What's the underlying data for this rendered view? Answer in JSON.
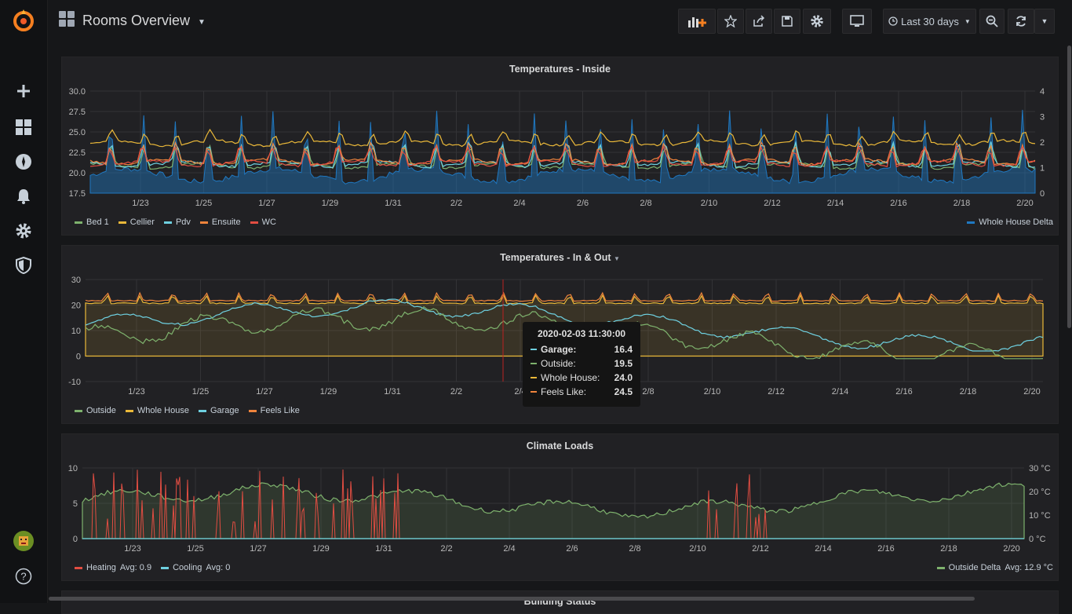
{
  "dashboard": {
    "title": "Rooms Overview"
  },
  "toolbar": {
    "time_range": "Last 30 days"
  },
  "xticks": [
    "1/23",
    "1/25",
    "1/27",
    "1/29",
    "1/31",
    "2/2",
    "2/4",
    "2/6",
    "2/8",
    "2/10",
    "2/12",
    "2/14",
    "2/16",
    "2/18",
    "2/20"
  ],
  "panels": [
    {
      "title": "Temperatures - Inside",
      "left_ticks": [
        "30.0",
        "27.5",
        "25.0",
        "22.5",
        "20.0",
        "17.5"
      ],
      "right_ticks": [
        "4",
        "3",
        "2",
        "1",
        "0"
      ],
      "legend": [
        {
          "label": "Bed 1",
          "color": "#7eb26d"
        },
        {
          "label": "Cellier",
          "color": "#eab839"
        },
        {
          "label": "Pdv",
          "color": "#6ed0e0"
        },
        {
          "label": "Ensuite",
          "color": "#ef843c"
        },
        {
          "label": "WC",
          "color": "#e24d42"
        }
      ],
      "legend_right": {
        "label": "Whole House Delta",
        "color": "#1f78c1"
      }
    },
    {
      "title": "Temperatures - In & Out",
      "left_ticks": [
        "30",
        "20",
        "10",
        "0",
        "-10"
      ],
      "legend": [
        {
          "label": "Outside",
          "color": "#7eb26d"
        },
        {
          "label": "Whole House",
          "color": "#eab839"
        },
        {
          "label": "Garage",
          "color": "#6ed0e0"
        },
        {
          "label": "Feels Like",
          "color": "#ef843c"
        }
      ]
    },
    {
      "title": "Climate Loads",
      "left_ticks": [
        "10",
        "5",
        "0"
      ],
      "right_ticks": [
        "30 °C",
        "20 °C",
        "10 °C",
        "0 °C"
      ],
      "legend": [
        {
          "label": "Heating",
          "stat": "Avg: 0.9",
          "color": "#e24d42"
        },
        {
          "label": "Cooling",
          "stat": "Avg: 0",
          "color": "#6ed0e0"
        }
      ],
      "legend_right": {
        "label": "Outside Delta",
        "stat": "Avg: 12.9 °C",
        "color": "#7eb26d"
      }
    }
  ],
  "next_panel_title": "Building Status",
  "tooltip": {
    "time": "2020-02-03 11:30:00",
    "rows": [
      {
        "label": "Garage:",
        "value": "16.4",
        "color": "#6ed0e0",
        "bold": true
      },
      {
        "label": "Outside:",
        "value": "19.5",
        "color": "#7eb26d"
      },
      {
        "label": "Whole House:",
        "value": "24.0",
        "color": "#eab839"
      },
      {
        "label": "Feels Like:",
        "value": "24.5",
        "color": "#ef843c"
      }
    ]
  }
}
